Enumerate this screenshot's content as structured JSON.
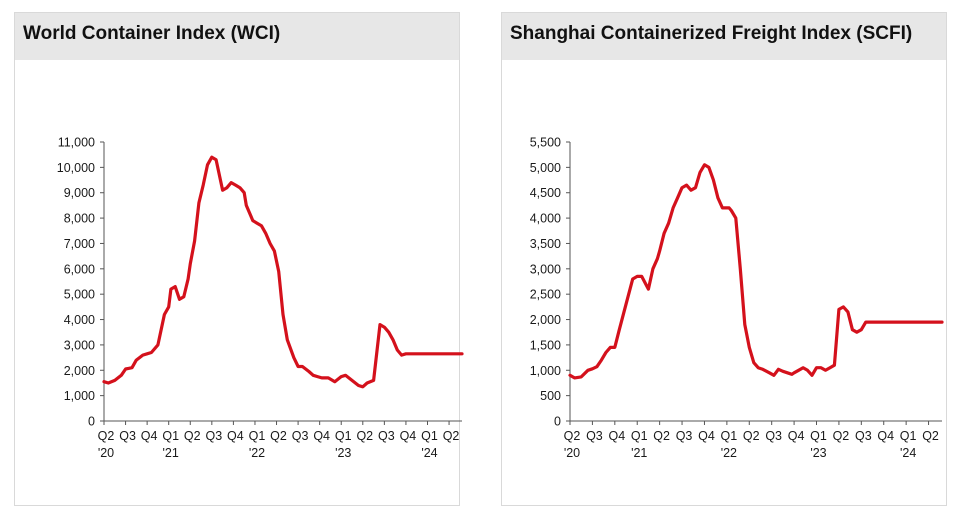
{
  "colors": {
    "line": "#d4111c",
    "axis": "#555555",
    "header_bg": "#e7e7e7"
  },
  "chart_data": [
    {
      "type": "line",
      "title": "World Container Index (WCI)",
      "xlabel": "",
      "ylabel": "",
      "ylim": [
        0,
        11000
      ],
      "y_ticks": [
        0,
        1000,
        2000,
        3000,
        4000,
        5000,
        6000,
        7000,
        8000,
        9000,
        10000,
        11000
      ],
      "y_tick_labels": [
        "0",
        "1,000",
        "2,000",
        "3,000",
        "4,000",
        "5,000",
        "6,000",
        "7,000",
        "8,000",
        "9,000",
        "10,000",
        "11,000"
      ],
      "xlim": [
        0,
        16.6
      ],
      "x_ticks": [
        {
          "x": 0,
          "label": "Q2",
          "year": "'20"
        },
        {
          "x": 1,
          "label": "Q3",
          "year": ""
        },
        {
          "x": 2,
          "label": "Q4",
          "year": ""
        },
        {
          "x": 3,
          "label": "Q1",
          "year": "'21"
        },
        {
          "x": 4,
          "label": "Q2",
          "year": ""
        },
        {
          "x": 5,
          "label": "Q3",
          "year": ""
        },
        {
          "x": 6,
          "label": "Q4",
          "year": ""
        },
        {
          "x": 7,
          "label": "Q1",
          "year": "'22"
        },
        {
          "x": 8,
          "label": "Q2",
          "year": ""
        },
        {
          "x": 9,
          "label": "Q3",
          "year": ""
        },
        {
          "x": 10,
          "label": "Q4",
          "year": ""
        },
        {
          "x": 11,
          "label": "Q1",
          "year": "'23"
        },
        {
          "x": 12,
          "label": "Q2",
          "year": ""
        },
        {
          "x": 13,
          "label": "Q3",
          "year": ""
        },
        {
          "x": 14,
          "label": "Q4",
          "year": ""
        },
        {
          "x": 15,
          "label": "Q1",
          "year": "'24"
        },
        {
          "x": 16,
          "label": "Q2",
          "year": ""
        }
      ],
      "series": [
        {
          "name": "WCI",
          "x": [
            0,
            0.2,
            0.5,
            0.8,
            1.0,
            1.3,
            1.5,
            1.8,
            2.0,
            2.2,
            2.5,
            2.8,
            3.0,
            3.1,
            3.3,
            3.5,
            3.7,
            3.9,
            4.0,
            4.2,
            4.4,
            4.6,
            4.8,
            5.0,
            5.2,
            5.5,
            5.7,
            5.9,
            6.1,
            6.3,
            6.5,
            6.6,
            6.8,
            6.9,
            7.1,
            7.3,
            7.5,
            7.7,
            7.9,
            8.1,
            8.3,
            8.5,
            8.8,
            9.0,
            9.2,
            9.5,
            9.7,
            9.9,
            10.1,
            10.4,
            10.7,
            11.0,
            11.2,
            11.5,
            11.8,
            12.0,
            12.2,
            12.5,
            12.8,
            13.0,
            13.2,
            13.4,
            13.6,
            13.8,
            14.0,
            14.2,
            14.4,
            14.6,
            14.8,
            15.0,
            15.1,
            15.3,
            15.5,
            15.7,
            15.9,
            16.1,
            16.4,
            16.6
          ],
          "values": [
            1550,
            1500,
            1600,
            1800,
            2050,
            2100,
            2400,
            2600,
            2650,
            2700,
            3000,
            4200,
            4500,
            5200,
            5300,
            4800,
            4900,
            5600,
            6200,
            7100,
            8600,
            9300,
            10100,
            10400,
            10300,
            9100,
            9200,
            9400,
            9300,
            9200,
            9000,
            8500,
            8100,
            7900,
            7800,
            7700,
            7400,
            7000,
            6700,
            5900,
            4200,
            3200,
            2500,
            2150,
            2150,
            1950,
            1800,
            1750,
            1700,
            1700,
            1550,
            1750,
            1800,
            1600,
            1400,
            1350,
            1500,
            1600,
            3800,
            3700,
            3500,
            3200,
            2800,
            2600,
            2650,
            2650,
            2650,
            2650,
            2650,
            2650,
            2650,
            2650,
            2650,
            2650,
            2650,
            2650,
            2650,
            2650
          ]
        }
      ]
    },
    {
      "type": "line",
      "title": "Shanghai Containerized Freight Index (SCFI)",
      "xlabel": "",
      "ylabel": "",
      "ylim": [
        0,
        5500
      ],
      "y_ticks": [
        0,
        500,
        1000,
        1500,
        2000,
        2500,
        3000,
        3500,
        4000,
        4500,
        5000,
        5500
      ],
      "y_tick_labels": [
        "0",
        "500",
        "1,000",
        "1,500",
        "2,000",
        "2,500",
        "3,000",
        "3,500",
        "4,000",
        "4,500",
        "5,000",
        "5,500"
      ],
      "xlim": [
        0,
        16.6
      ],
      "x_ticks": [
        {
          "x": 0,
          "label": "Q2",
          "year": "'20"
        },
        {
          "x": 1,
          "label": "Q3",
          "year": ""
        },
        {
          "x": 2,
          "label": "Q4",
          "year": ""
        },
        {
          "x": 3,
          "label": "Q1",
          "year": "'21"
        },
        {
          "x": 4,
          "label": "Q2",
          "year": ""
        },
        {
          "x": 5,
          "label": "Q3",
          "year": ""
        },
        {
          "x": 6,
          "label": "Q4",
          "year": ""
        },
        {
          "x": 7,
          "label": "Q1",
          "year": "'22"
        },
        {
          "x": 8,
          "label": "Q2",
          "year": ""
        },
        {
          "x": 9,
          "label": "Q3",
          "year": ""
        },
        {
          "x": 10,
          "label": "Q4",
          "year": ""
        },
        {
          "x": 11,
          "label": "Q1",
          "year": "'23"
        },
        {
          "x": 12,
          "label": "Q2",
          "year": ""
        },
        {
          "x": 13,
          "label": "Q3",
          "year": ""
        },
        {
          "x": 14,
          "label": "Q4",
          "year": ""
        },
        {
          "x": 15,
          "label": "Q1",
          "year": "'24"
        },
        {
          "x": 16,
          "label": "Q2",
          "year": ""
        }
      ],
      "series": [
        {
          "name": "SCFI",
          "x": [
            0,
            0.2,
            0.5,
            0.8,
            1.0,
            1.2,
            1.4,
            1.6,
            1.8,
            2.0,
            2.2,
            2.5,
            2.8,
            3.0,
            3.2,
            3.5,
            3.7,
            3.9,
            4.0,
            4.2,
            4.4,
            4.6,
            4.8,
            5.0,
            5.2,
            5.4,
            5.6,
            5.8,
            6.0,
            6.2,
            6.4,
            6.6,
            6.8,
            7.0,
            7.1,
            7.2,
            7.4,
            7.6,
            7.8,
            8.0,
            8.2,
            8.4,
            8.6,
            8.9,
            9.1,
            9.3,
            9.5,
            9.7,
            9.9,
            10.0,
            10.2,
            10.4,
            10.6,
            10.8,
            11.0,
            11.2,
            11.4,
            11.6,
            11.8,
            12.0,
            12.2,
            12.4,
            12.6,
            12.8,
            13.0,
            13.2,
            13.4,
            13.6,
            13.8,
            14.0,
            14.2,
            14.4,
            14.6,
            14.8,
            15.0,
            15.1,
            15.3,
            15.5,
            15.7,
            15.9,
            16.1,
            16.4,
            16.6
          ],
          "values": [
            900,
            850,
            870,
            1000,
            1030,
            1070,
            1200,
            1350,
            1450,
            1450,
            1800,
            2300,
            2800,
            2850,
            2850,
            2600,
            3000,
            3200,
            3350,
            3700,
            3900,
            4200,
            4400,
            4600,
            4650,
            4550,
            4600,
            4900,
            5050,
            5000,
            4750,
            4400,
            4200,
            4200,
            4200,
            4150,
            4000,
            3000,
            1900,
            1450,
            1150,
            1050,
            1020,
            950,
            900,
            1020,
            980,
            950,
            920,
            950,
            1000,
            1050,
            1000,
            900,
            1050,
            1050,
            1000,
            1050,
            1100,
            2200,
            2250,
            2150,
            1800,
            1750,
            1800,
            1950,
            1950,
            1950,
            1950,
            1950,
            1950,
            1950,
            1950,
            1950,
            1950,
            1950,
            1950,
            1950,
            1950,
            1950,
            1950,
            1950,
            1950
          ]
        }
      ]
    }
  ]
}
